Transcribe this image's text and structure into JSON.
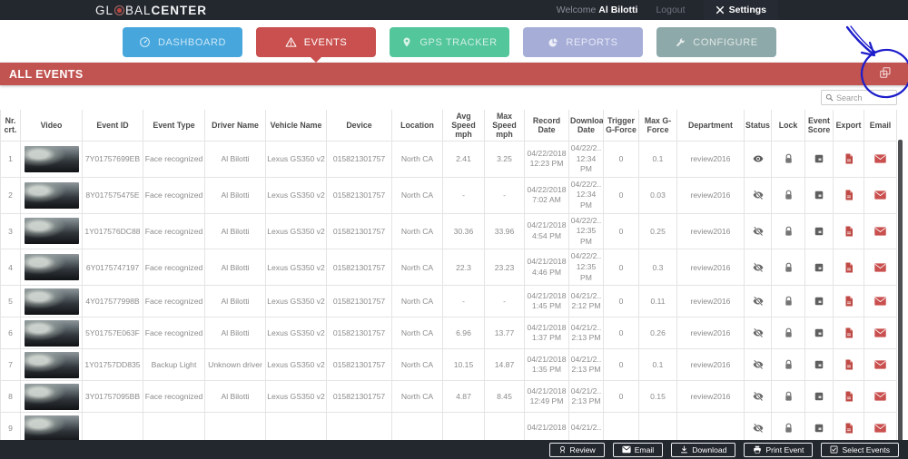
{
  "topbar": {
    "logo": {
      "prefix": "GL",
      "mid": "BAL",
      "suffix": "CENTER"
    },
    "welcome_label": "Welcome",
    "username": "Al Bilotti",
    "logout_label": "Logout",
    "settings_label": "Settings"
  },
  "nav": {
    "items": [
      {
        "id": "dashboard",
        "label": "DASHBOARD",
        "color": "#47a7dd",
        "active": false
      },
      {
        "id": "events",
        "label": "EVENTS",
        "color": "#c9504e",
        "active": true
      },
      {
        "id": "gps-tracker",
        "label": "GPS TRACKER",
        "color": "#54c69c",
        "active": false
      },
      {
        "id": "reports",
        "label": "REPORTS",
        "color": "#a6aed8",
        "active": false
      },
      {
        "id": "configure",
        "label": "CONFIGURE",
        "color": "#8ea9a9",
        "active": false
      }
    ]
  },
  "banner": {
    "title": "ALL EVENTS",
    "color": "#c15350"
  },
  "search": {
    "placeholder": "Search",
    "value": ""
  },
  "annotation": {
    "color": "#1d1dcb"
  },
  "table": {
    "headers": [
      "Nr. crt.",
      "Video",
      "Event ID",
      "Event Type",
      "Driver Name",
      "Vehicle Name",
      "Device",
      "Location",
      "Avg Speed mph",
      "Max Speed mph",
      "Record Date",
      "Download Date",
      "Trigger G-Force",
      "Max G-Force",
      "Department",
      "Status",
      "Lock",
      "Event Score",
      "Export",
      "Email"
    ],
    "rows": [
      {
        "nr": "1",
        "event_id": "7Y01757699EB",
        "event_type": "Face recognized",
        "driver": "Al Bilotti",
        "vehicle": "Lexus GS350 v2",
        "device": "015821301757",
        "location": "North CA",
        "avg_speed": "2.41",
        "max_speed": "3.25",
        "record_date": "04/22/2018",
        "record_time": "12:23 PM",
        "download_date": "04/22/2..",
        "download_time": "12:34 PM",
        "trigger_g": "0",
        "max_g": "0.1",
        "department": "review2016",
        "status": "viewed"
      },
      {
        "nr": "2",
        "event_id": "8Y017575475E",
        "event_type": "Face recognized",
        "driver": "Al Bilotti",
        "vehicle": "Lexus GS350 v2",
        "device": "015821301757",
        "location": "North CA",
        "avg_speed": "-",
        "max_speed": "-",
        "record_date": "04/22/2018",
        "record_time": "7:02 AM",
        "download_date": "04/22/2..",
        "download_time": "12:34 PM",
        "trigger_g": "0",
        "max_g": "0.03",
        "department": "review2016",
        "status": "unviewed"
      },
      {
        "nr": "3",
        "event_id": "1Y017576DC88",
        "event_type": "Face recognized",
        "driver": "Al Bilotti",
        "vehicle": "Lexus GS350 v2",
        "device": "015821301757",
        "location": "North CA",
        "avg_speed": "30.36",
        "max_speed": "33.96",
        "record_date": "04/21/2018",
        "record_time": "4:54 PM",
        "download_date": "04/22/2..",
        "download_time": "12:35 PM",
        "trigger_g": "0",
        "max_g": "0.25",
        "department": "review2016",
        "status": "unviewed"
      },
      {
        "nr": "4",
        "event_id": "6Y0175747197",
        "event_type": "Face recognized",
        "driver": "Al Bilotti",
        "vehicle": "Lexus GS350 v2",
        "device": "015821301757",
        "location": "North CA",
        "avg_speed": "22.3",
        "max_speed": "23.23",
        "record_date": "04/21/2018",
        "record_time": "4:46 PM",
        "download_date": "04/22/2..",
        "download_time": "12:35 PM",
        "trigger_g": "0",
        "max_g": "0.3",
        "department": "review2016",
        "status": "unviewed"
      },
      {
        "nr": "5",
        "event_id": "4Y017577998B",
        "event_type": "Face recognized",
        "driver": "Al Bilotti",
        "vehicle": "Lexus GS350 v2",
        "device": "015821301757",
        "location": "North CA",
        "avg_speed": "-",
        "max_speed": "-",
        "record_date": "04/21/2018",
        "record_time": "1:45 PM",
        "download_date": "04/21/2..",
        "download_time": "2:12 PM",
        "trigger_g": "0",
        "max_g": "0.11",
        "department": "review2016",
        "status": "unviewed"
      },
      {
        "nr": "6",
        "event_id": "5Y01757E063F",
        "event_type": "Face recognized",
        "driver": "Al Bilotti",
        "vehicle": "Lexus GS350 v2",
        "device": "015821301757",
        "location": "North CA",
        "avg_speed": "6.96",
        "max_speed": "13.77",
        "record_date": "04/21/2018",
        "record_time": "1:37 PM",
        "download_date": "04/21/2..",
        "download_time": "2:13 PM",
        "trigger_g": "0",
        "max_g": "0.26",
        "department": "review2016",
        "status": "unviewed"
      },
      {
        "nr": "7",
        "event_id": "1Y01757DD835",
        "event_type": "Backup Light",
        "driver": "Unknown driver",
        "vehicle": "Lexus GS350 v2",
        "device": "015821301757",
        "location": "North CA",
        "avg_speed": "10.15",
        "max_speed": "14.87",
        "record_date": "04/21/2018",
        "record_time": "1:35 PM",
        "download_date": "04/21/2..",
        "download_time": "2:13 PM",
        "trigger_g": "0",
        "max_g": "0.1",
        "department": "review2016",
        "status": "unviewed"
      },
      {
        "nr": "8",
        "event_id": "3Y01757095BB",
        "event_type": "Face recognized",
        "driver": "Al Bilotti",
        "vehicle": "Lexus GS350 v2",
        "device": "015821301757",
        "location": "North CA",
        "avg_speed": "4.87",
        "max_speed": "8.45",
        "record_date": "04/21/2018",
        "record_time": "12:49 PM",
        "download_date": "04/21/2..",
        "download_time": "2:13 PM",
        "trigger_g": "0",
        "max_g": "0.15",
        "department": "review2016",
        "status": "unviewed"
      },
      {
        "nr": "9",
        "event_id": "",
        "event_type": "",
        "driver": "",
        "vehicle": "",
        "device": "",
        "location": "",
        "avg_speed": "",
        "max_speed": "",
        "record_date": "04/21/2018",
        "record_time": "",
        "download_date": "04/21/2..",
        "download_time": "",
        "trigger_g": "",
        "max_g": "",
        "department": "",
        "status": "unviewed",
        "partial": true
      }
    ]
  },
  "footer": {
    "buttons": [
      {
        "label": "Review",
        "icon": "review-icon"
      },
      {
        "label": "Email",
        "icon": "email-icon"
      },
      {
        "label": "Download",
        "icon": "download-icon"
      },
      {
        "label": "Print Event",
        "icon": "print-icon"
      },
      {
        "label": "Select Events",
        "icon": "select-events-icon"
      }
    ]
  }
}
